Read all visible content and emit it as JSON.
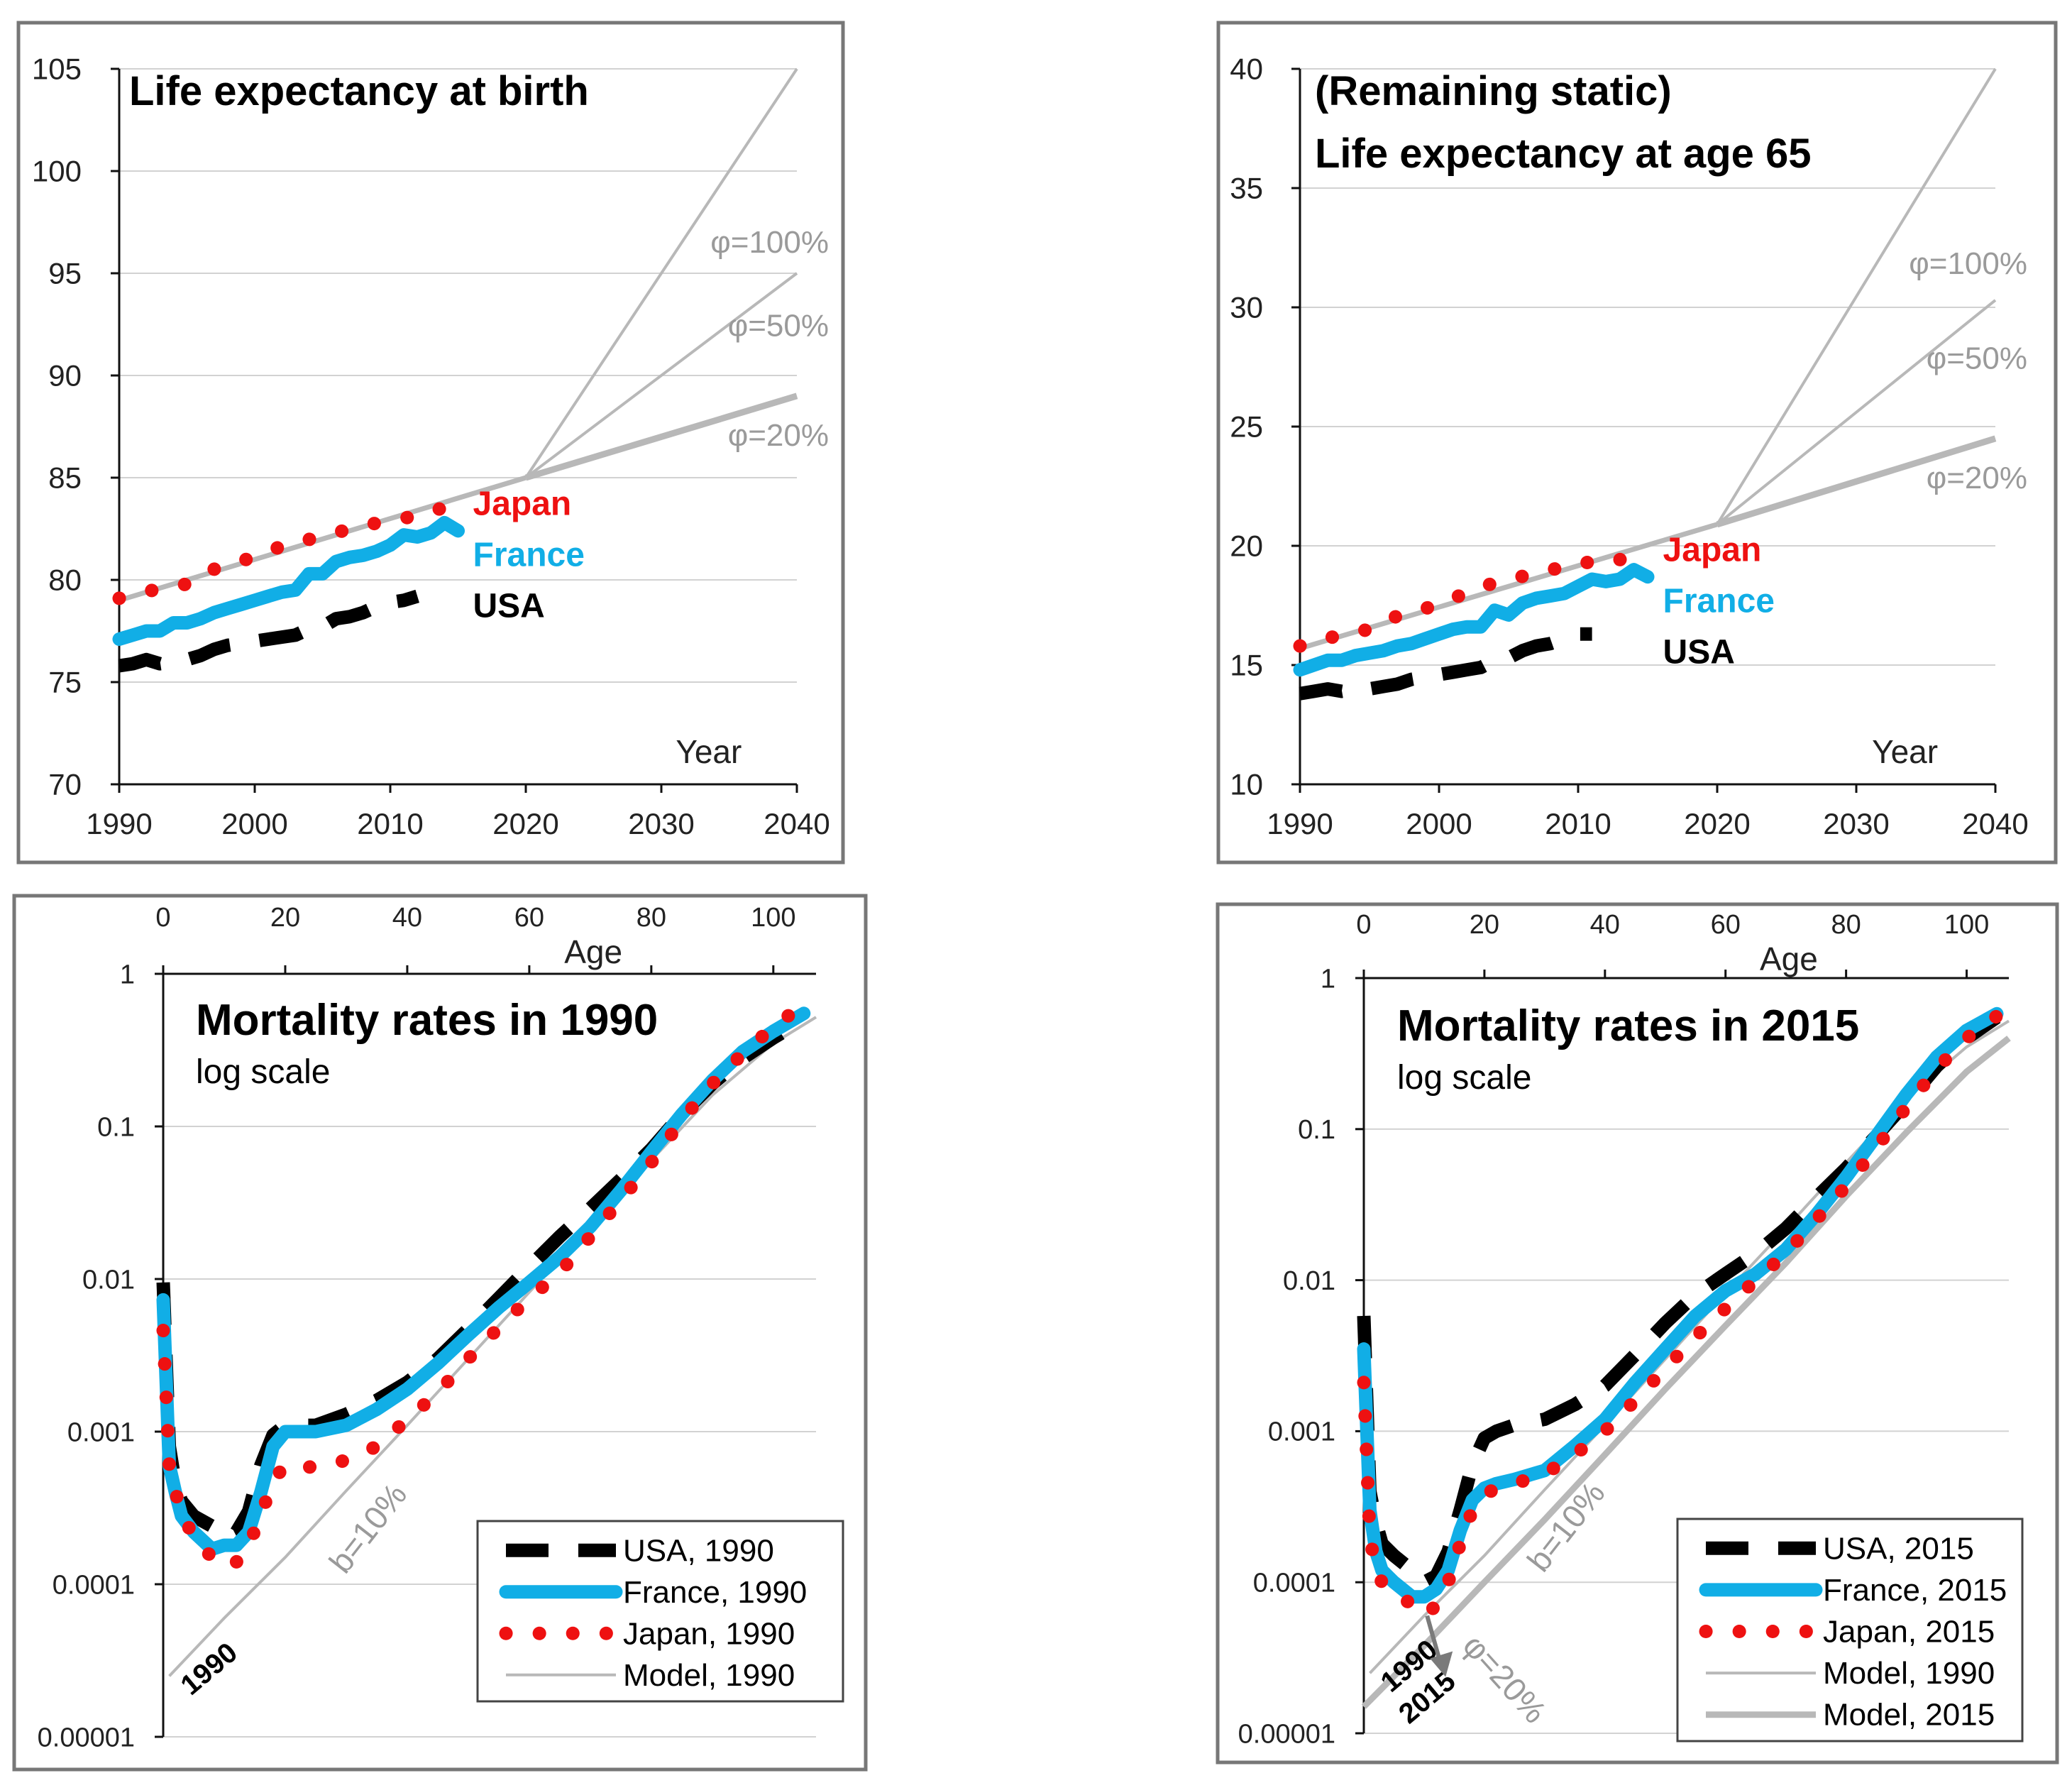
{
  "colors": {
    "japan": "#ee1111",
    "france": "#11aee6",
    "usa": "#000000",
    "model": "#b8b8b8",
    "frame": "#777777",
    "grid": "#d2d2d2",
    "axis": "#111111"
  },
  "chart_data": [
    {
      "id": "le_birth",
      "type": "line",
      "title": "Life expectancy at birth",
      "xlabel": "Year",
      "ylabel": "",
      "xlim": [
        1990,
        2040
      ],
      "ylim": [
        70,
        105
      ],
      "xticks": [
        1990,
        2000,
        2010,
        2020,
        2030,
        2040
      ],
      "yticks": [
        70,
        75,
        80,
        85,
        90,
        95,
        100,
        105
      ],
      "grid": "horizontal",
      "series": [
        {
          "name": "Japan",
          "key": "japan",
          "style": "dotted",
          "x": [
            1990,
            1992.5,
            1995,
            1997.5,
            2000,
            2002.5,
            2005,
            2007.5,
            2010,
            2012.5,
            2015
          ],
          "y": [
            79.1,
            79.5,
            79.8,
            80.7,
            81.1,
            81.8,
            82.1,
            82.6,
            82.9,
            83.2,
            83.8
          ]
        },
        {
          "name": "France",
          "key": "france",
          "style": "solid",
          "x": [
            1990,
            1991,
            1992,
            1993,
            1994,
            1995,
            1996,
            1997,
            1998,
            1999,
            2000,
            2001,
            2002,
            2003,
            2004,
            2005,
            2006,
            2007,
            2008,
            2009,
            2010,
            2011,
            2012,
            2013,
            2014,
            2015
          ],
          "y": [
            77.1,
            77.3,
            77.5,
            77.5,
            77.9,
            77.9,
            78.1,
            78.4,
            78.6,
            78.8,
            79.0,
            79.2,
            79.4,
            79.5,
            80.3,
            80.3,
            80.9,
            81.1,
            81.2,
            81.4,
            81.7,
            82.2,
            82.1,
            82.3,
            82.8,
            82.4
          ]
        },
        {
          "name": "USA",
          "key": "usa",
          "style": "dashed",
          "x": [
            1990,
            1991,
            1992,
            1993,
            1994,
            1995,
            1996,
            1997,
            1998,
            1999,
            2000,
            2001,
            2002,
            2003,
            2004,
            2005,
            2006,
            2007,
            2008,
            2009,
            2010,
            2011,
            2012
          ],
          "y": [
            75.8,
            75.9,
            76.1,
            75.9,
            76.0,
            76.1,
            76.3,
            76.6,
            76.8,
            76.9,
            77.0,
            77.1,
            77.2,
            77.3,
            77.6,
            77.7,
            78.1,
            78.2,
            78.4,
            78.7,
            78.9,
            79.0,
            79.2
          ]
        },
        {
          "name": "Model",
          "key": "model",
          "style": "model-base",
          "x": [
            1990,
            2020
          ],
          "y": [
            79.0,
            85.0
          ]
        },
        {
          "name": "φ=100%",
          "key": "model",
          "style": "model-thin",
          "x": [
            2020,
            2040
          ],
          "y": [
            85.0,
            105.0
          ]
        },
        {
          "name": "φ=50%",
          "key": "model",
          "style": "model-thin",
          "x": [
            2020,
            2040
          ],
          "y": [
            85.0,
            95.0
          ]
        },
        {
          "name": "φ=20%",
          "key": "model",
          "style": "model-thick",
          "x": [
            2020,
            2040
          ],
          "y": [
            85.0,
            89.0
          ]
        }
      ],
      "labels": {
        "japan": "Japan",
        "france": "France",
        "usa": "USA",
        "phi100": "φ=100%",
        "phi50": "φ=50%",
        "phi20": "φ=20%"
      }
    },
    {
      "id": "le_65",
      "type": "line",
      "title": [
        "(Remaining static)",
        "Life expectancy at age 65"
      ],
      "xlabel": "Year",
      "ylabel": "",
      "xlim": [
        1990,
        2040
      ],
      "ylim": [
        10,
        40
      ],
      "xticks": [
        1990,
        2000,
        2010,
        2020,
        2030,
        2040
      ],
      "yticks": [
        10,
        15,
        20,
        25,
        30,
        35,
        40
      ],
      "grid": "horizontal",
      "series": [
        {
          "name": "Japan",
          "key": "japan",
          "style": "dotted",
          "x": [
            1990,
            1992.5,
            1995,
            1997.5,
            2000,
            2002.5,
            2005,
            2007.5,
            2010,
            2012.5,
            2015
          ],
          "y": [
            15.8,
            16.2,
            16.5,
            17.2,
            17.5,
            18.2,
            18.6,
            18.9,
            19.3,
            19.3,
            19.9
          ]
        },
        {
          "name": "France",
          "key": "france",
          "style": "solid",
          "x": [
            1990,
            1991,
            1992,
            1993,
            1994,
            1995,
            1996,
            1997,
            1998,
            1999,
            2000,
            2001,
            2002,
            2003,
            2004,
            2005,
            2006,
            2007,
            2008,
            2009,
            2010,
            2011,
            2012,
            2013,
            2014,
            2015
          ],
          "y": [
            14.8,
            15.0,
            15.2,
            15.2,
            15.4,
            15.5,
            15.6,
            15.8,
            15.9,
            16.1,
            16.3,
            16.5,
            16.6,
            16.6,
            17.3,
            17.1,
            17.6,
            17.8,
            17.9,
            18.0,
            18.3,
            18.6,
            18.5,
            18.6,
            19.0,
            18.7
          ]
        },
        {
          "name": "USA",
          "key": "usa",
          "style": "dashed",
          "x": [
            1990,
            1991,
            1992,
            1993,
            1994,
            1995,
            1996,
            1997,
            1998,
            1999,
            2000,
            2001,
            2002,
            2003,
            2004,
            2005,
            2006,
            2007,
            2008,
            2009,
            2010,
            2011
          ],
          "y": [
            13.8,
            13.9,
            14.0,
            13.9,
            14.0,
            14.0,
            14.1,
            14.2,
            14.4,
            14.5,
            14.6,
            14.7,
            14.8,
            14.9,
            15.2,
            15.3,
            15.6,
            15.8,
            15.9,
            16.1,
            16.3,
            16.3
          ]
        },
        {
          "name": "Model",
          "key": "model",
          "style": "model-base",
          "x": [
            1990,
            2020
          ],
          "y": [
            15.7,
            20.9
          ]
        },
        {
          "name": "φ=100%",
          "key": "model",
          "style": "model-thin",
          "x": [
            2020,
            2040
          ],
          "y": [
            20.9,
            40.0
          ]
        },
        {
          "name": "φ=50%",
          "key": "model",
          "style": "model-thin",
          "x": [
            2020,
            2040
          ],
          "y": [
            20.9,
            30.3
          ]
        },
        {
          "name": "φ=20%",
          "key": "model",
          "style": "model-thick",
          "x": [
            2020,
            2040
          ],
          "y": [
            20.9,
            24.5
          ]
        }
      ],
      "labels": {
        "japan": "Japan",
        "france": "France",
        "usa": "USA",
        "phi100": "φ=100%",
        "phi50": "φ=50%",
        "phi20": "φ=20%"
      }
    },
    {
      "id": "mort_1990",
      "type": "line",
      "yscale": "log",
      "title": "Mortality rates in 1990",
      "subtitle": "log scale",
      "xlabel": "Age",
      "ylabel": "",
      "xlim": [
        0,
        107
      ],
      "ylim": [
        1e-05,
        1
      ],
      "xticks": [
        0,
        20,
        40,
        60,
        80,
        100
      ],
      "yticks": [
        1e-05,
        0.0001,
        0.001,
        0.01,
        0.1,
        1
      ],
      "ytick_labels": [
        "0.00001",
        "0.0001",
        "0.001",
        "0.01",
        "0.1",
        "1"
      ],
      "grid": "horizontal",
      "annotations": [
        "b=10%",
        "1990"
      ],
      "series": [
        {
          "name": "USA,     1990",
          "key": "usa",
          "style": "dashed",
          "x": [
            0,
            1,
            2,
            3,
            5,
            8,
            10,
            12,
            14,
            16,
            18,
            20,
            22,
            25,
            30,
            35,
            40,
            45,
            50,
            55,
            60,
            65,
            70,
            75,
            80,
            85,
            90,
            95,
            100,
            105
          ],
          "y": [
            0.0095,
            0.0008,
            0.00045,
            0.00035,
            0.00028,
            0.00024,
            0.0002,
            0.00022,
            0.0003,
            0.0006,
            0.00095,
            0.0011,
            0.0011,
            0.0011,
            0.0013,
            0.0016,
            0.0021,
            0.003,
            0.0047,
            0.0075,
            0.012,
            0.019,
            0.029,
            0.045,
            0.071,
            0.12,
            0.19,
            0.28,
            0.38,
            0.5
          ]
        },
        {
          "name": "France, 1990",
          "key": "france",
          "style": "solid",
          "x": [
            0,
            1,
            2,
            3,
            5,
            8,
            10,
            12,
            14,
            16,
            18,
            20,
            22,
            25,
            30,
            35,
            40,
            45,
            50,
            55,
            60,
            65,
            70,
            75,
            80,
            85,
            90,
            95,
            100,
            105
          ],
          "y": [
            0.0073,
            0.0006,
            0.0004,
            0.00028,
            0.00022,
            0.00017,
            0.00018,
            0.00018,
            0.00022,
            0.0004,
            0.0008,
            0.001,
            0.001,
            0.001,
            0.0011,
            0.0014,
            0.0019,
            0.0028,
            0.0043,
            0.0065,
            0.0095,
            0.014,
            0.022,
            0.038,
            0.068,
            0.12,
            0.2,
            0.31,
            0.42,
            0.55
          ]
        },
        {
          "name": "Japan,  1990",
          "key": "japan",
          "style": "dotted",
          "x": [
            0,
            1,
            2,
            3,
            5,
            8,
            10,
            12,
            14,
            16,
            18,
            20,
            22,
            25,
            30,
            35,
            40,
            45,
            50,
            55,
            60,
            65,
            70,
            75,
            80,
            85,
            90,
            95,
            100,
            105
          ],
          "y": [
            0.0046,
            0.0006,
            0.0004,
            0.0003,
            0.0002,
            0.00015,
            0.00013,
            0.00014,
            0.00018,
            0.00028,
            0.00048,
            0.0006,
            0.0006,
            0.00058,
            0.00065,
            0.0008,
            0.0012,
            0.0018,
            0.003,
            0.0048,
            0.0075,
            0.011,
            0.019,
            0.033,
            0.058,
            0.11,
            0.19,
            0.3,
            0.45,
            0.63
          ]
        },
        {
          "name": "Model, 1990",
          "key": "model",
          "style": "model-thin",
          "x": [
            1,
            10,
            20,
            30,
            40,
            50,
            60,
            70,
            80,
            90,
            100,
            107
          ],
          "y": [
            2.5e-05,
            6e-05,
            0.00015,
            0.00041,
            0.0011,
            0.003,
            0.0082,
            0.022,
            0.06,
            0.16,
            0.35,
            0.52
          ]
        }
      ]
    },
    {
      "id": "mort_2015",
      "type": "line",
      "yscale": "log",
      "title": "Mortality rates in 2015",
      "subtitle": "log scale",
      "xlabel": "Age",
      "ylabel": "",
      "xlim": [
        0,
        107
      ],
      "ylim": [
        1e-05,
        1
      ],
      "xticks": [
        0,
        20,
        40,
        60,
        80,
        100
      ],
      "yticks": [
        1e-05,
        0.0001,
        0.001,
        0.01,
        0.1,
        1
      ],
      "ytick_labels": [
        "0.00001",
        "0.0001",
        "0.001",
        "0.01",
        "0.1",
        "1"
      ],
      "grid": "horizontal",
      "annotations": [
        "b=10%",
        "1990",
        "2015",
        "φ=20%"
      ],
      "series": [
        {
          "name": "USA,     2015",
          "key": "usa",
          "style": "dashed",
          "x": [
            0,
            1,
            2,
            3,
            5,
            8,
            10,
            12,
            14,
            16,
            18,
            20,
            22,
            25,
            30,
            35,
            40,
            45,
            50,
            55,
            60,
            65,
            70,
            75,
            80,
            85,
            90,
            95,
            100,
            105
          ],
          "y": [
            0.0058,
            0.0004,
            0.00025,
            0.00018,
            0.00015,
            0.00012,
            0.0001,
            0.00011,
            0.00016,
            0.0003,
            0.0006,
            0.0009,
            0.001,
            0.0011,
            0.0012,
            0.0015,
            0.002,
            0.0032,
            0.0052,
            0.008,
            0.011,
            0.015,
            0.022,
            0.035,
            0.055,
            0.09,
            0.15,
            0.26,
            0.4,
            0.55
          ]
        },
        {
          "name": "France, 2015",
          "key": "france",
          "style": "solid",
          "x": [
            0,
            1,
            2,
            3,
            5,
            8,
            10,
            12,
            14,
            16,
            18,
            20,
            22,
            25,
            30,
            35,
            40,
            45,
            50,
            55,
            60,
            65,
            70,
            75,
            80,
            85,
            90,
            95,
            100,
            105
          ],
          "y": [
            0.0035,
            0.0003,
            0.00016,
            0.00012,
            0.0001,
            8e-05,
            8e-05,
            9e-05,
            0.00012,
            0.00022,
            0.00035,
            0.00042,
            0.00045,
            0.00048,
            0.00055,
            0.0008,
            0.0012,
            0.0021,
            0.0035,
            0.0058,
            0.0085,
            0.011,
            0.016,
            0.027,
            0.048,
            0.09,
            0.17,
            0.3,
            0.45,
            0.58
          ]
        },
        {
          "name": "Japan,  2015",
          "key": "japan",
          "style": "dotted",
          "x": [
            0,
            1,
            2,
            3,
            5,
            8,
            10,
            12,
            14,
            16,
            18,
            20,
            22,
            25,
            30,
            35,
            40,
            45,
            50,
            55,
            60,
            65,
            70,
            75,
            80,
            85,
            90,
            95,
            100,
            105
          ],
          "y": [
            0.0021,
            0.0002,
            0.00012,
            0.0001,
            9e-05,
            7e-05,
            6e-05,
            7e-05,
            0.0001,
            0.00018,
            0.0003,
            0.00038,
            0.00042,
            0.00045,
            0.00052,
            0.0007,
            0.001,
            0.0016,
            0.0026,
            0.0042,
            0.0065,
            0.01,
            0.015,
            0.025,
            0.042,
            0.075,
            0.14,
            0.25,
            0.4,
            0.56
          ]
        },
        {
          "name": "Model, 1990",
          "key": "model",
          "style": "model-thin",
          "x": [
            1,
            10,
            20,
            30,
            40,
            50,
            60,
            70,
            80,
            90,
            100,
            107
          ],
          "y": [
            2.5e-05,
            6e-05,
            0.00015,
            0.00041,
            0.0011,
            0.003,
            0.0082,
            0.022,
            0.06,
            0.16,
            0.35,
            0.52
          ]
        },
        {
          "name": "Model, 2015",
          "key": "model",
          "style": "model-thick",
          "x": [
            0,
            10,
            20,
            30,
            40,
            50,
            60,
            70,
            80,
            90,
            100,
            107
          ],
          "y": [
            1.5e-05,
            3.8e-05,
            0.0001,
            0.00026,
            0.0007,
            0.0019,
            0.005,
            0.013,
            0.036,
            0.095,
            0.24,
            0.4
          ]
        }
      ]
    }
  ]
}
